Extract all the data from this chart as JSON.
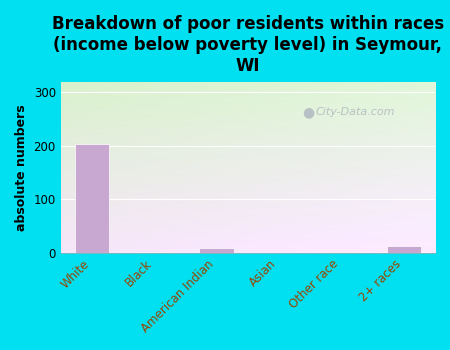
{
  "title": "Breakdown of poor residents within races\n(income below poverty level) in Seymour,\nWI",
  "categories": [
    "White",
    "Black",
    "American Indian",
    "Asian",
    "Other race",
    "2+ races"
  ],
  "values": [
    203,
    2,
    8,
    0,
    2,
    12
  ],
  "bar_color": "#c8a8d0",
  "ylabel": "absolute numbers",
  "ylim": [
    0,
    320
  ],
  "yticks": [
    0,
    100,
    200,
    300
  ],
  "background_outer": "#00e0f0",
  "title_fontsize": 12,
  "axis_label_fontsize": 9,
  "tick_fontsize": 8.5,
  "watermark": "City-Data.com",
  "grid_color": "#ffffff",
  "tick_color": "#994400",
  "gradient_top": "#d4edc0",
  "gradient_bottom": "#f5f8ee"
}
